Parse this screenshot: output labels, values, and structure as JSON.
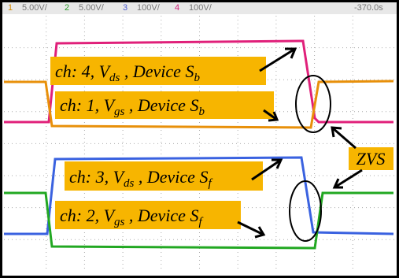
{
  "header": {
    "channels": [
      {
        "num": "1",
        "scale": "5.00V/"
      },
      {
        "num": "2",
        "scale": "5.00V/"
      },
      {
        "num": "3",
        "scale": "100V/"
      },
      {
        "num": "4",
        "scale": "100V/"
      }
    ],
    "time": "-370.0s"
  },
  "labels": [
    {
      "ch": "ch: 4, ",
      "v": "V",
      "vsub": "ds",
      "dev": " , Device ",
      "s": "S",
      "ssub": "b"
    },
    {
      "ch": "ch: 1, ",
      "v": "V",
      "vsub": "gs",
      "dev": " , Device ",
      "s": "S",
      "ssub": "b"
    },
    {
      "ch": "ch: 3, ",
      "v": "V",
      "vsub": "ds",
      "dev": " , Device ",
      "s": "S",
      "ssub": "f"
    },
    {
      "ch": "ch: 2, ",
      "v": "V",
      "vsub": "gs",
      "dev": " , Device ",
      "s": "S",
      "ssub": "f"
    }
  ],
  "zvs": "ZVS"
}
